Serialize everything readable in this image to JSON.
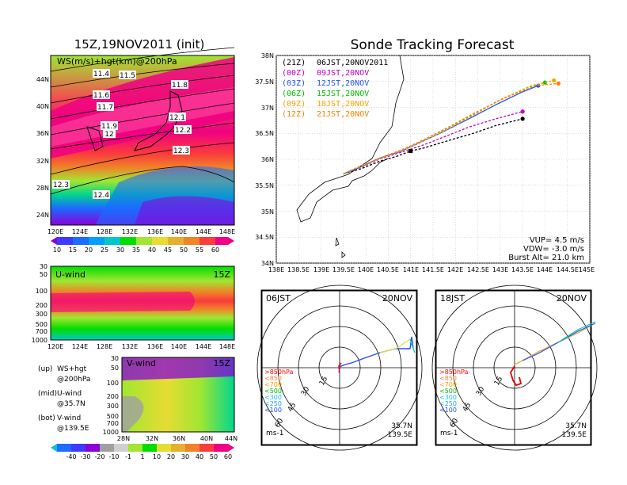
{
  "map_title": "15Z,19NOV2011 (init)",
  "main_title": "Sonde Tracking Forecast",
  "colors": {
    "c0": "#8a00d8",
    "c1": "#3b3bff",
    "c2": "#1b6cff",
    "c3": "#00a0ff",
    "c4": "#00c8c8",
    "c5": "#00d68c",
    "c6": "#00dd00",
    "c7": "#a0e632",
    "c8": "#e6dc32",
    "c9": "#e6af2d",
    "c10": "#f08228",
    "c11": "#fa3c3c",
    "c12": "#f00082",
    "gray": "#a0a0a0",
    "black": "#000000",
    "purple": "#c000c0",
    "blue": "#2050ff",
    "green": "#00c000",
    "orange": "#ffa000",
    "amber": "#ff8000"
  },
  "top_map": {
    "label": "WS(m/s)+hgt(km)@200hPa",
    "lat_ticks": [
      "44N",
      "40N",
      "36N",
      "32N",
      "28N",
      "24N"
    ],
    "lon_ticks": [
      "120E",
      "124E",
      "128E",
      "132E",
      "136E",
      "140E",
      "144E",
      "148E"
    ],
    "contours": [
      "11.4",
      "11.5",
      "11.8",
      "11.6",
      "11.7",
      "12.1",
      "11.9",
      "12",
      "12.2",
      "12.3",
      "12.4",
      "12.3"
    ],
    "colorbar": [
      "10",
      "15",
      "20",
      "25",
      "30",
      "35",
      "40",
      "45",
      "50",
      "55",
      "60"
    ]
  },
  "uwind": {
    "label": "U-wind",
    "time": "15Z",
    "y_ticks": [
      "30",
      "50",
      "100",
      "200",
      "300",
      "500",
      "700",
      "1000"
    ],
    "x_ticks": [
      "120E",
      "124E",
      "128E",
      "132E",
      "136E",
      "140E",
      "144E",
      "148E"
    ]
  },
  "vwind": {
    "label": "V-wind",
    "time": "15Z",
    "y_ticks": [
      "30",
      "50",
      "100",
      "200",
      "300",
      "500",
      "700",
      "1000"
    ],
    "x_ticks": [
      "28N",
      "32N",
      "36N",
      "40N",
      "44N"
    ],
    "colorbar": [
      "-40",
      "-30",
      "-20",
      "-10",
      "-1",
      "1",
      "10",
      "20",
      "30",
      "40",
      "50",
      "60"
    ]
  },
  "legend_left": [
    {
      "key": "(up)",
      "text": "WS+hgt"
    },
    {
      "key": "",
      "text": "@200hPa"
    },
    {
      "key": "(mid)",
      "text": "U-wind"
    },
    {
      "key": "",
      "text": "@35.7N"
    },
    {
      "key": "(bot)",
      "text": "V-wind"
    },
    {
      "key": "",
      "text": "@139.5E"
    }
  ],
  "track": {
    "y_ticks": [
      "38N",
      "37.5N",
      "37N",
      "36.5N",
      "36N",
      "35.5N",
      "35N",
      "34.5N",
      "34N"
    ],
    "x_ticks": [
      "138E",
      "138.5E",
      "139E",
      "139.5E",
      "140E",
      "140.5E",
      "141E",
      "141.5E",
      "142E",
      "142.5E",
      "143E",
      "143.5E",
      "144E",
      "144.5E",
      "145E"
    ],
    "legend": [
      {
        "z": "(21Z)",
        "t": "06JST,20NOV2011",
        "color": "#000000"
      },
      {
        "z": "(00Z)",
        "t": "09JST,20NOV",
        "color": "#c000c0"
      },
      {
        "z": "(03Z)",
        "t": "12JST,20NOV",
        "color": "#2050ff"
      },
      {
        "z": "(06Z)",
        "t": "15JST,20NOV",
        "color": "#00c000"
      },
      {
        "z": "(09Z)",
        "t": "18JST,20NOV",
        "color": "#ffa000"
      },
      {
        "z": "(12Z)",
        "t": "21JST,20NOV",
        "color": "#ff8000"
      }
    ],
    "params": [
      "VUP=  4.5 m/s",
      "VDW= -3.0 m/s",
      "Burst Alt= 21.0 km"
    ]
  },
  "chart_data": [
    {
      "type": "line",
      "title": "Sonde Tracking Forecast",
      "xlabel": "",
      "ylabel": "",
      "xlim": [
        138,
        145
      ],
      "ylim": [
        34,
        38
      ],
      "series": [
        {
          "name": "(21Z) 06JST,20NOV2011",
          "x": [
            139.5,
            139.9,
            140.3,
            140.7,
            141.0,
            141.3,
            141.8,
            142.4,
            142.9,
            143.5
          ],
          "y": [
            35.72,
            35.82,
            35.96,
            36.06,
            36.16,
            36.22,
            36.35,
            36.5,
            36.65,
            36.78
          ]
        },
        {
          "name": "(00Z) 09JST,20NOV",
          "x": [
            139.5,
            139.9,
            140.3,
            140.8,
            141.3,
            141.8,
            142.3,
            142.9,
            143.5
          ],
          "y": [
            35.72,
            35.85,
            36.0,
            36.14,
            36.28,
            36.45,
            36.62,
            36.78,
            36.92
          ]
        },
        {
          "name": "(03Z) 12JST,20NOV",
          "x": [
            139.5,
            139.9,
            140.3,
            140.8,
            141.2,
            141.7,
            142.3,
            142.9,
            143.5,
            143.85
          ],
          "y": [
            35.72,
            35.86,
            36.02,
            36.16,
            36.32,
            36.52,
            36.78,
            37.05,
            37.3,
            37.42
          ]
        },
        {
          "name": "(06Z) 15JST,20NOV",
          "x": [
            139.5,
            139.9,
            140.3,
            140.8,
            141.2,
            141.7,
            142.3,
            142.9,
            143.6,
            144.0
          ],
          "y": [
            35.72,
            35.86,
            36.02,
            36.18,
            36.34,
            36.55,
            36.82,
            37.1,
            37.38,
            37.48
          ]
        },
        {
          "name": "(09Z) 18JST,20NOV",
          "x": [
            139.5,
            139.9,
            140.4,
            140.9,
            141.3,
            141.8,
            142.4,
            143.0,
            143.7,
            144.2
          ],
          "y": [
            35.72,
            35.87,
            36.04,
            36.2,
            36.36,
            36.57,
            36.85,
            37.15,
            37.42,
            37.52
          ]
        },
        {
          "name": "(12Z) 21JST,20NOV",
          "x": [
            139.5,
            139.9,
            140.4,
            140.9,
            141.3,
            141.8,
            142.4,
            143.1,
            143.8,
            144.3
          ],
          "y": [
            35.72,
            35.88,
            36.05,
            36.22,
            36.38,
            36.6,
            36.88,
            37.18,
            37.42,
            37.46
          ]
        }
      ]
    },
    {
      "type": "scatter",
      "title": "06JST 20NOV",
      "hodograph": true,
      "rings": [
        15,
        30,
        45,
        60
      ],
      "legend": [
        ">850hPa",
        "<850",
        "<700",
        "<500",
        "<300",
        "<250",
        "<100"
      ],
      "units": "ms-1",
      "location": [
        "35.7N",
        "139.5E"
      ]
    },
    {
      "type": "scatter",
      "title": "18JST 20NOV",
      "hodograph": true,
      "rings": [
        15,
        30,
        45,
        60
      ],
      "legend": [
        ">850hPa",
        "<850",
        "<700",
        "<500",
        "<300",
        "<250",
        "<100"
      ],
      "units": "ms-1",
      "location": [
        "35.7N",
        "139.5E"
      ]
    }
  ],
  "hodo1": {
    "time": "06JST",
    "date": "20NOV",
    "loc_lat": "35.7N",
    "loc_lon": "139.5E",
    "units": "ms-1",
    "ring_labels": [
      "15",
      "30",
      "45",
      "60"
    ],
    "legend": [
      ">850hPa",
      "<850",
      "<700",
      "<500",
      "<300",
      "<250",
      "<100"
    ],
    "legend_colors": [
      "#ff0000",
      "#ff8040",
      "#ffa000",
      "#00c000",
      "#20c0ff",
      "#20a0ff",
      "#2050ff"
    ]
  },
  "hodo2": {
    "time": "18JST",
    "date": "20NOV",
    "loc_lat": "35.7N",
    "loc_lon": "139.5E",
    "units": "ms-1",
    "ring_labels": [
      "15",
      "30",
      "45",
      "60"
    ],
    "legend": [
      ">850hPa",
      "<850",
      "<700",
      "<500",
      "<300",
      "<250",
      "<100"
    ],
    "legend_colors": [
      "#ff0000",
      "#ff8040",
      "#ffa000",
      "#00c000",
      "#20c0ff",
      "#20a0ff",
      "#2050ff"
    ]
  }
}
